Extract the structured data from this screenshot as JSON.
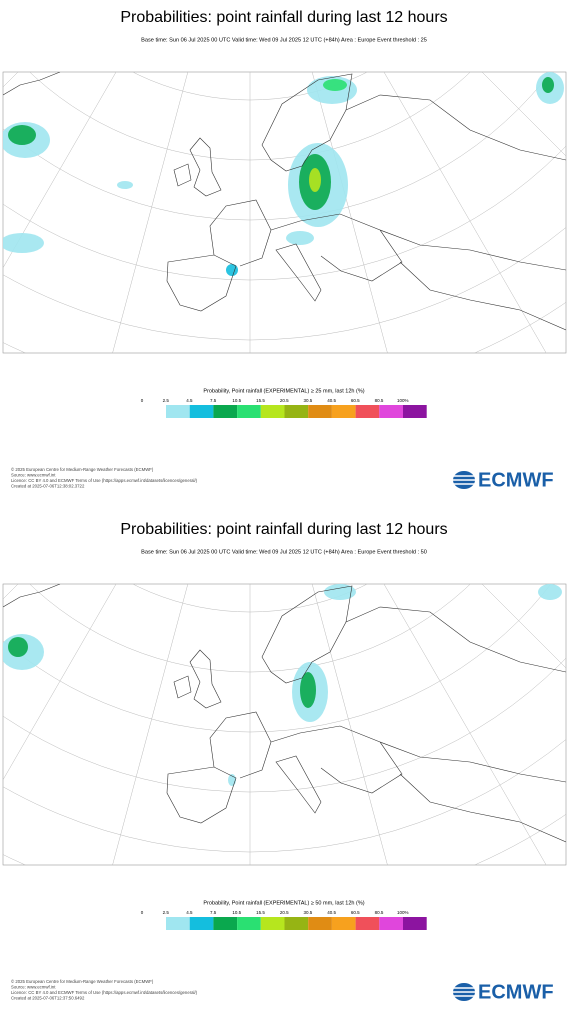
{
  "panels": [
    {
      "title": "Probabilities: point rainfall during last 12 hours",
      "subtitle": "Base time: Sun 06 Jul 2025 00 UTC Valid time: Wed 09 Jul 2025 12 UTC (+84h) Area : Europe Event threshold : 25",
      "legend": {
        "title": "Probability, Point rainfall (EXPERIMENTAL) ≥ 25 mm, last 12h (%)",
        "labels": [
          "0",
          "2.5",
          "4.5",
          "7.5",
          "10.5",
          "15.5",
          "20.5",
          "30.5",
          "40.5",
          "60.5",
          "80.5",
          "100%"
        ]
      },
      "footer": [
        "© 2025 European Centre for Medium-Range Weather Forecasts (ECMWF)",
        "Source: www.ecmwf.int",
        "Licence: CC BY 4.0 and ECMWF Terms of Use (https://apps.ecmwf.int/datasets/licences/general/)",
        "Created at 2025-07-06T12:38:02.3722"
      ],
      "logo": "ECMWF"
    },
    {
      "title": "Probabilities: point rainfall during last 12 hours",
      "subtitle": "Base time: Sun 06 Jul 2025 00 UTC Valid time: Wed 09 Jul 2025 12 UTC (+84h) Area : Europe Event threshold : 50",
      "legend": {
        "title": "Probability, Point rainfall (EXPERIMENTAL) ≥ 50 mm, last 12h (%)",
        "labels": [
          "0",
          "2.5",
          "4.5",
          "7.5",
          "10.5",
          "15.5",
          "20.5",
          "30.5",
          "40.5",
          "60.5",
          "80.5",
          "100%"
        ]
      },
      "footer": [
        "© 2025 European Centre for Medium-Range Weather Forecasts (ECMWF)",
        "Source: www.ecmwf.int",
        "Licence: CC BY 4.0 and ECMWF Terms of Use (https://apps.ecmwf.int/datasets/licences/general/)",
        "Created at 2025-07-06T12:37:50.6492"
      ],
      "logo": "ECMWF"
    }
  ],
  "legend_colors": [
    "#a0e6f0",
    "#14bede",
    "#0aa84e",
    "#2ae072",
    "#b6e61e",
    "#96b414",
    "#e08c14",
    "#f7a11e",
    "#f0505a",
    "#e046dc",
    "#8c14a0"
  ]
}
